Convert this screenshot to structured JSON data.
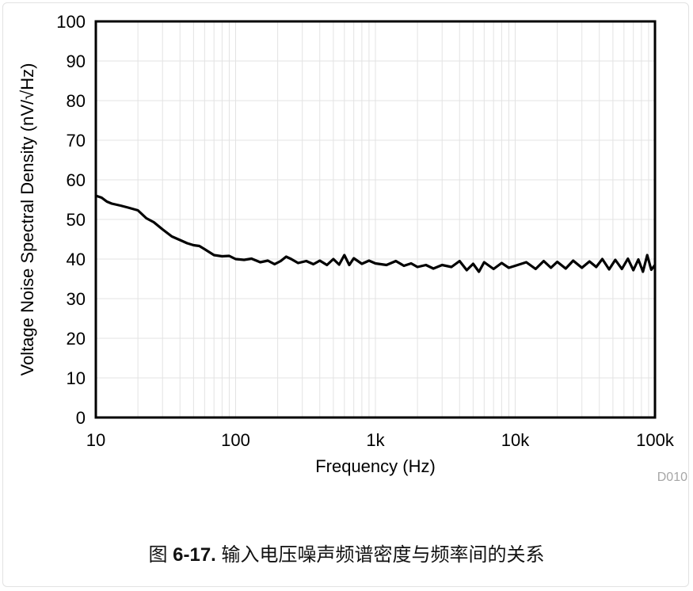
{
  "chart_data": {
    "type": "line",
    "xlabel": "Frequency (Hz)",
    "ylabel": "Voltage Noise Spectral Density (nV/√Hz)",
    "x_scale": "log",
    "xlim": [
      10,
      100000
    ],
    "ylim": [
      0,
      100
    ],
    "x_ticks": [
      10,
      100,
      1000,
      10000,
      100000
    ],
    "x_tick_labels": [
      "10",
      "100",
      "1k",
      "10k",
      "100k"
    ],
    "y_ticks": [
      0,
      10,
      20,
      30,
      40,
      50,
      60,
      70,
      80,
      90,
      100
    ],
    "y_tick_labels": [
      "0",
      "10",
      "20",
      "30",
      "40",
      "50",
      "60",
      "70",
      "80",
      "90",
      "100"
    ],
    "grid": true,
    "line_color": "#000000",
    "series": [
      {
        "x": [
          10,
          11,
          12,
          13,
          15,
          17,
          20,
          23,
          26,
          30,
          35,
          40,
          45,
          50,
          55,
          60,
          70,
          80,
          90,
          100,
          115,
          130,
          150,
          170,
          190,
          210,
          230,
          250,
          280,
          320,
          360,
          400,
          450,
          500,
          550,
          600,
          650,
          700,
          800,
          900,
          1000,
          1200,
          1400,
          1600,
          1800,
          2000,
          2300,
          2600,
          3000,
          3500,
          4000,
          4500,
          5000,
          5500,
          6000,
          7000,
          8000,
          9000,
          10000,
          12000,
          14000,
          16000,
          18000,
          20000,
          23000,
          26000,
          30000,
          34000,
          38000,
          42000,
          47000,
          52000,
          58000,
          64000,
          70000,
          76000,
          82000,
          88000,
          94000,
          100000
        ],
        "y": [
          56,
          55.5,
          54.5,
          54,
          53.5,
          53,
          52.3,
          50.3,
          49.3,
          47.5,
          45.7,
          44.8,
          44,
          43.5,
          43.3,
          42.5,
          41,
          40.7,
          40.8,
          40,
          39.8,
          40.1,
          39.2,
          39.6,
          38.7,
          39.5,
          40.6,
          40,
          39,
          39.5,
          38.7,
          39.6,
          38.5,
          40,
          38.6,
          41,
          38.5,
          40.2,
          38.8,
          39.6,
          38.9,
          38.5,
          39.5,
          38.3,
          38.9,
          38,
          38.5,
          37.6,
          38.5,
          38,
          39.5,
          37.2,
          38.8,
          36.8,
          39.2,
          37.5,
          39,
          37.8,
          38.3,
          39.2,
          37.5,
          39.5,
          37.8,
          39.3,
          37.6,
          39.6,
          37.8,
          39.4,
          38,
          40,
          37.4,
          39.8,
          37.5,
          40.1,
          37.2,
          39.9,
          36.8,
          41,
          37.3,
          38.5
        ]
      }
    ],
    "annotation": "D010"
  },
  "caption": {
    "prefix": "图 ",
    "number": "6-17.",
    "text": " 输入电压噪声频谱密度与频率间的关系"
  }
}
